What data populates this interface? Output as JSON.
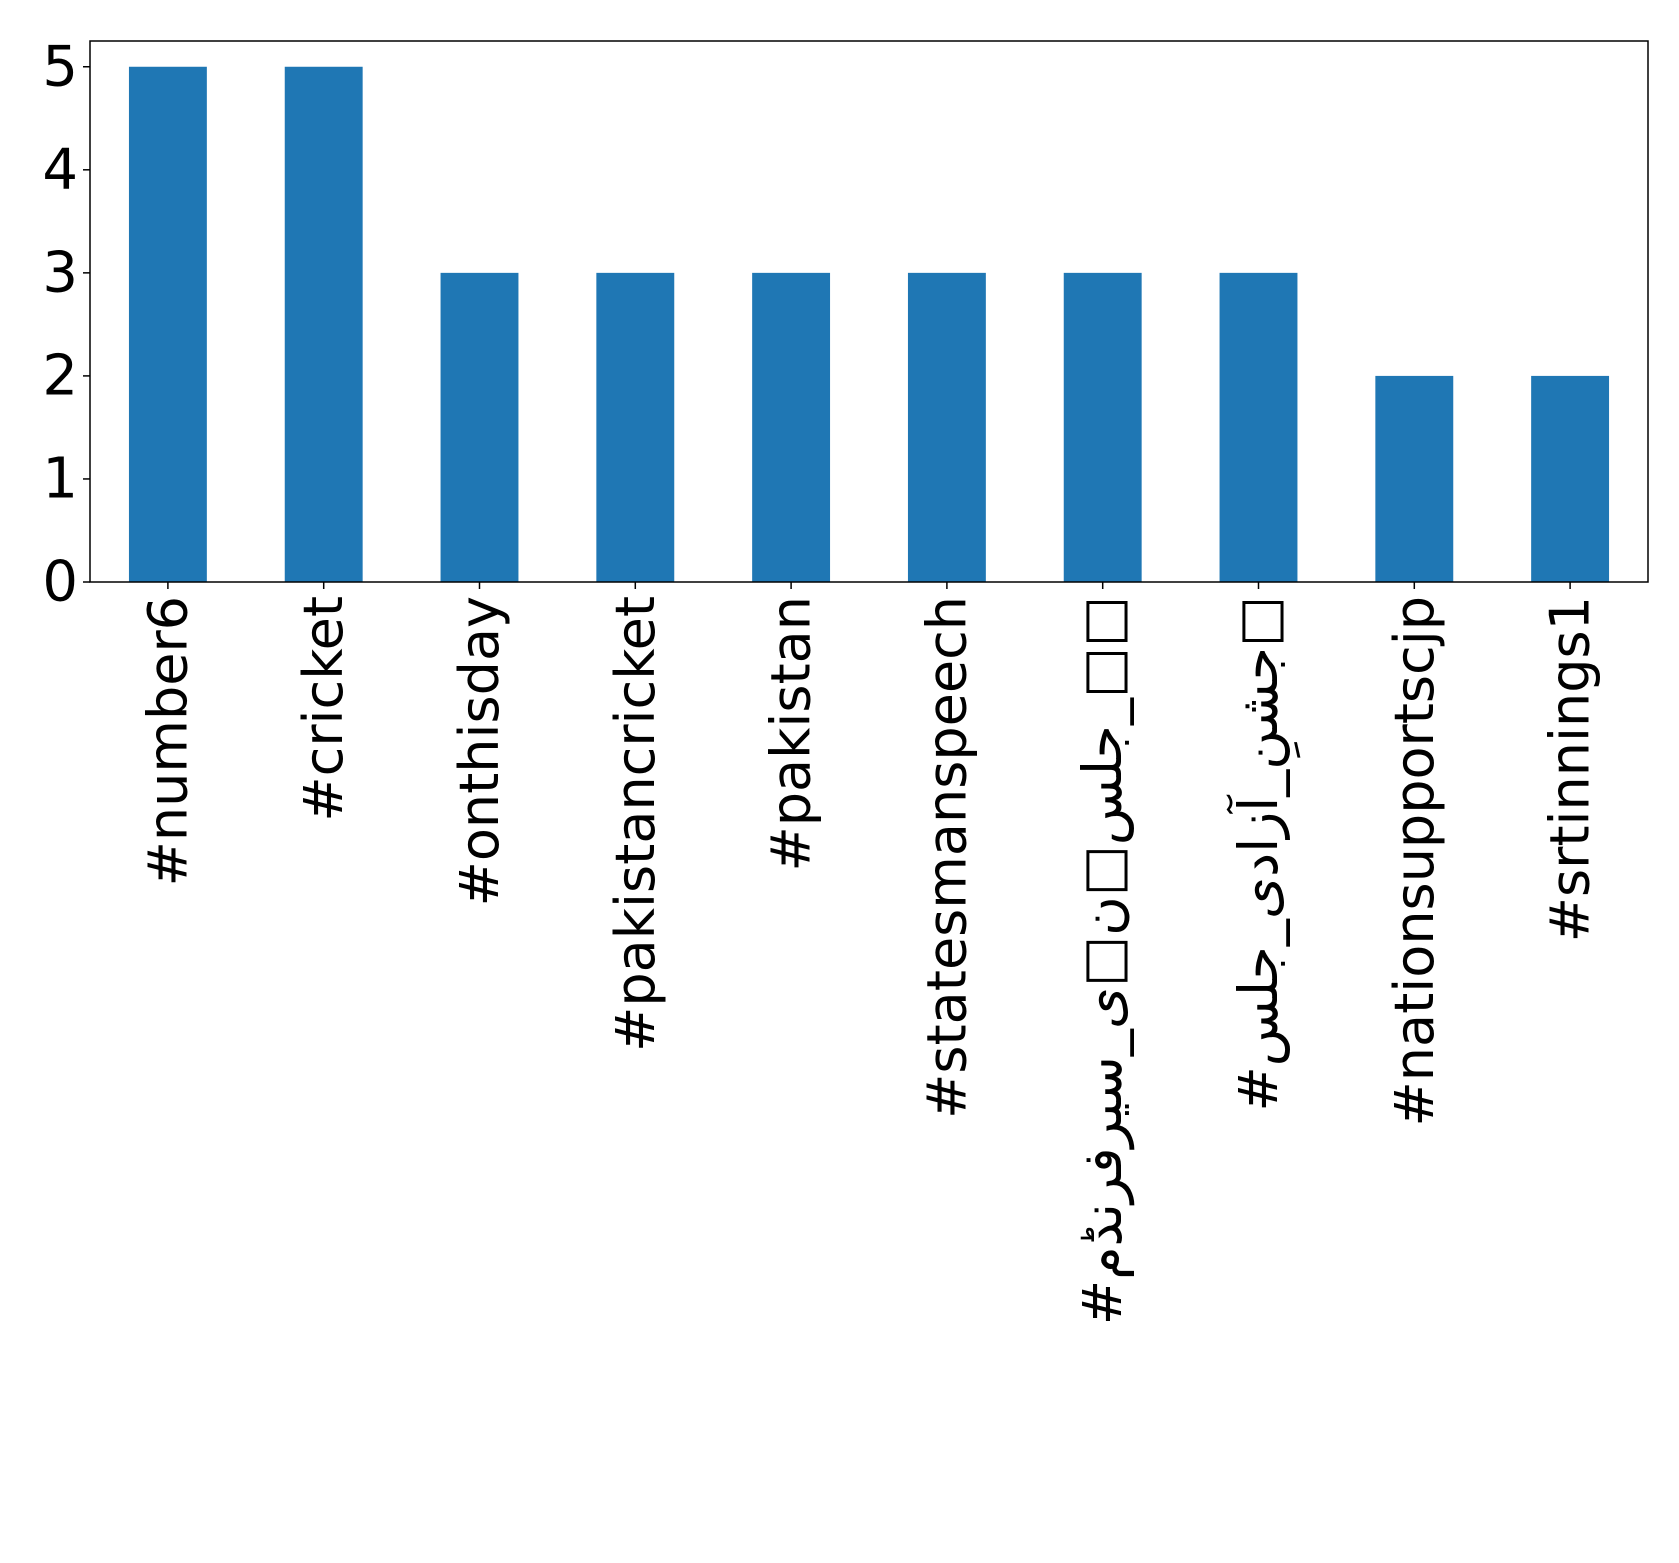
{
  "chart_data": {
    "type": "bar",
    "title": "",
    "xlabel": "",
    "ylabel": "",
    "categories": [
      "#number6",
      "#cricket",
      "#onthisday",
      "#pakistancricket",
      "#pakistan",
      "#statesmanspeech",
      "#جلس□ن□ی_سیرفرنڈم_□□",
      "#جشنِ_آزادی_جلس□",
      "#nationsupportscjp",
      "#srtinnings1"
    ],
    "values": [
      5,
      5,
      3,
      3,
      3,
      3,
      3,
      3,
      2,
      2
    ],
    "ylim": [
      0,
      5.25
    ],
    "yticks": [
      0,
      1,
      2,
      3,
      4,
      5
    ],
    "bar_color": "#1f77b4",
    "grid": false,
    "legend": "none"
  }
}
